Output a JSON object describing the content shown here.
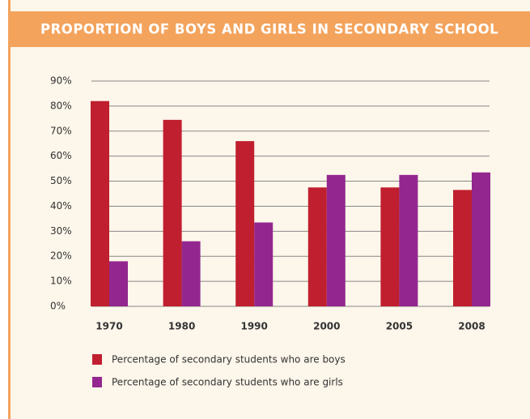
{
  "chart_data": {
    "type": "bar",
    "title": "PROPORTION OF BOYS AND GIRLS IN SECONDARY SCHOOL",
    "categories": [
      "1970",
      "1980",
      "1990",
      "2000",
      "2005",
      "2008"
    ],
    "series": [
      {
        "name": "Percentage of secondary students who are boys",
        "color": "#c01f2f",
        "values": [
          82,
          74.5,
          66,
          47.5,
          47.5,
          46.5
        ]
      },
      {
        "name": "Percentage of secondary students who are girls",
        "color": "#93278f",
        "values": [
          18,
          26,
          33.5,
          52.5,
          52.5,
          53.5
        ]
      }
    ],
    "ylim": [
      0,
      90
    ],
    "yticks": [
      {
        "value": 0,
        "label": "0%"
      },
      {
        "value": 10,
        "label": "10%"
      },
      {
        "value": 20,
        "label": "20%"
      },
      {
        "value": 30,
        "label": "30%"
      },
      {
        "value": 40,
        "label": "40%"
      },
      {
        "value": 50,
        "label": "50%"
      },
      {
        "value": 60,
        "label": "60%"
      },
      {
        "value": 70,
        "label": "70%"
      },
      {
        "value": 80,
        "label": "80%"
      },
      {
        "value": 90,
        "label": "90%"
      }
    ],
    "grid": true
  }
}
